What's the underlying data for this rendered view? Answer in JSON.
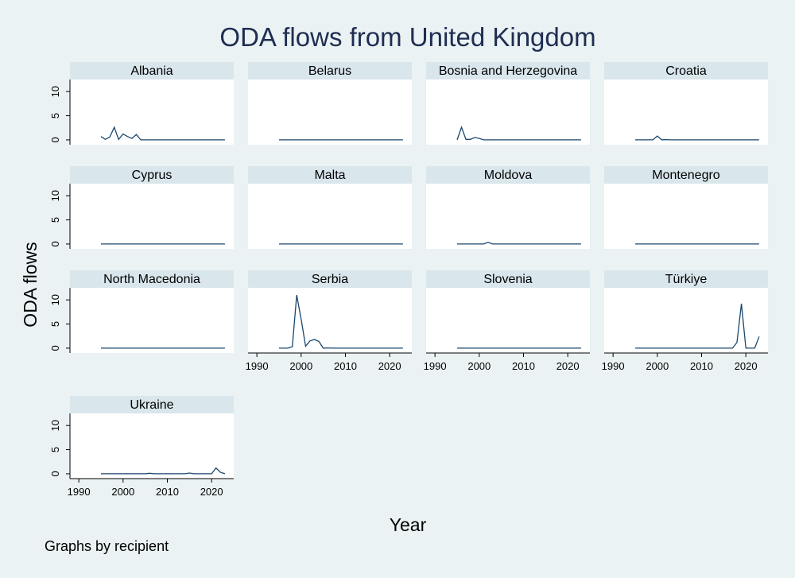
{
  "chart_data": {
    "type": "line",
    "title": "ODA flows from United Kingdom",
    "xlabel": "Year",
    "ylabel": "ODA flows",
    "note": "Graphs by recipient",
    "x_ticks": [
      1990,
      2000,
      2010,
      2020
    ],
    "y_ticks": [
      0,
      5,
      10
    ],
    "xlim": [
      1988,
      2025
    ],
    "ylim": [
      -1,
      12.5
    ],
    "grid": false,
    "colors": {
      "line": "#1a476f",
      "panel_header": "#d9e6eb",
      "background": "#eaf2f3",
      "panel": "#ffffff",
      "title": "#1f2d52"
    },
    "x": [
      1995,
      1996,
      1997,
      1998,
      1999,
      2000,
      2001,
      2002,
      2003,
      2004,
      2005,
      2006,
      2007,
      2008,
      2009,
      2010,
      2011,
      2012,
      2013,
      2014,
      2015,
      2016,
      2017,
      2018,
      2019,
      2020,
      2021,
      2022,
      2023
    ],
    "panels": [
      {
        "name": "Albania",
        "values": [
          0.7,
          0.1,
          0.6,
          2.6,
          0.1,
          1.2,
          0.7,
          0.3,
          1.1,
          0,
          0,
          0,
          0,
          0,
          0,
          0,
          0,
          0,
          0,
          0,
          0,
          0,
          0,
          0,
          0,
          0,
          0,
          0,
          0
        ]
      },
      {
        "name": "Belarus",
        "values": [
          0,
          0,
          0,
          0,
          0,
          0,
          0,
          0,
          0,
          0,
          0,
          0,
          0,
          0,
          0,
          0,
          0,
          0,
          0,
          0,
          0,
          0,
          0,
          0,
          0,
          0,
          0,
          0,
          0
        ]
      },
      {
        "name": "Bosnia and Herzegovina",
        "values": [
          0,
          2.6,
          0.1,
          0.1,
          0.5,
          0.3,
          0,
          0,
          0,
          0,
          0,
          0,
          0,
          0,
          0,
          0,
          0,
          0,
          0,
          0,
          0,
          0,
          0,
          0,
          0,
          0,
          0,
          0,
          0
        ]
      },
      {
        "name": "Croatia",
        "values": [
          0,
          0,
          0,
          0,
          0,
          0.8,
          0,
          0.05,
          0,
          0,
          0,
          0,
          0,
          0,
          0,
          0,
          0,
          0,
          0,
          0,
          0,
          0,
          0,
          0,
          0,
          0,
          0,
          0,
          0
        ]
      },
      {
        "name": "Cyprus",
        "values": [
          0,
          0,
          0,
          0,
          0,
          0,
          0,
          0,
          0,
          0,
          0,
          0,
          0,
          0,
          0,
          0,
          0,
          0,
          0,
          0,
          0,
          0,
          0,
          0,
          0,
          0,
          0,
          0,
          0
        ]
      },
      {
        "name": "Malta",
        "values": [
          0,
          0,
          0,
          0,
          0,
          0,
          0,
          0,
          0,
          0,
          0,
          0,
          0,
          0,
          0,
          0,
          0,
          0,
          0,
          0,
          0,
          0,
          0,
          0,
          0,
          0,
          0,
          0,
          0
        ]
      },
      {
        "name": "Moldova",
        "values": [
          0,
          0,
          0,
          0,
          0,
          0,
          0,
          0.35,
          0,
          0,
          0,
          0,
          0,
          0,
          0,
          0,
          0,
          0,
          0,
          0,
          0,
          0,
          0,
          0,
          0,
          0,
          0,
          0,
          0
        ]
      },
      {
        "name": "Montenegro",
        "values": [
          0,
          0,
          0,
          0,
          0,
          0,
          0,
          0,
          0,
          0,
          0,
          0,
          0,
          0,
          0,
          0,
          0,
          0,
          0,
          0,
          0,
          0,
          0,
          0,
          0,
          0,
          0,
          0,
          0
        ]
      },
      {
        "name": "North Macedonia",
        "values": [
          0,
          0,
          0,
          0,
          0,
          0,
          0,
          0,
          0,
          0,
          0,
          0,
          0,
          0,
          0,
          0,
          0,
          0,
          0,
          0,
          0,
          0,
          0,
          0,
          0,
          0,
          0,
          0,
          0
        ]
      },
      {
        "name": "Serbia",
        "values": [
          0,
          0,
          0,
          0.3,
          11,
          6,
          0.4,
          1.5,
          1.8,
          1.4,
          0,
          0.05,
          0,
          0,
          0,
          0,
          0,
          0,
          0,
          0,
          0,
          0,
          0,
          0,
          0,
          0,
          0,
          0,
          0
        ]
      },
      {
        "name": "Slovenia",
        "values": [
          0,
          0,
          0,
          0,
          0,
          0,
          0,
          0,
          0,
          0,
          0,
          0,
          0,
          0,
          0,
          0,
          0,
          0,
          0,
          0,
          0,
          0,
          0,
          0,
          0,
          0,
          0,
          0,
          0
        ]
      },
      {
        "name": "Türkiye",
        "values": [
          0,
          0,
          0,
          0,
          0,
          0,
          0,
          0,
          0,
          0,
          0,
          0,
          0,
          0,
          0,
          0,
          0,
          0,
          0,
          0,
          0,
          0,
          0,
          1.2,
          9.2,
          0,
          0,
          0,
          2.4
        ]
      },
      {
        "name": "Ukraine",
        "values": [
          0,
          0,
          0,
          0,
          0,
          0,
          0,
          0,
          0,
          0,
          0,
          0.1,
          0,
          0,
          0,
          0,
          0,
          0,
          0,
          0,
          0.15,
          0,
          0,
          0,
          0,
          0,
          1.2,
          0.3,
          0
        ]
      }
    ]
  }
}
